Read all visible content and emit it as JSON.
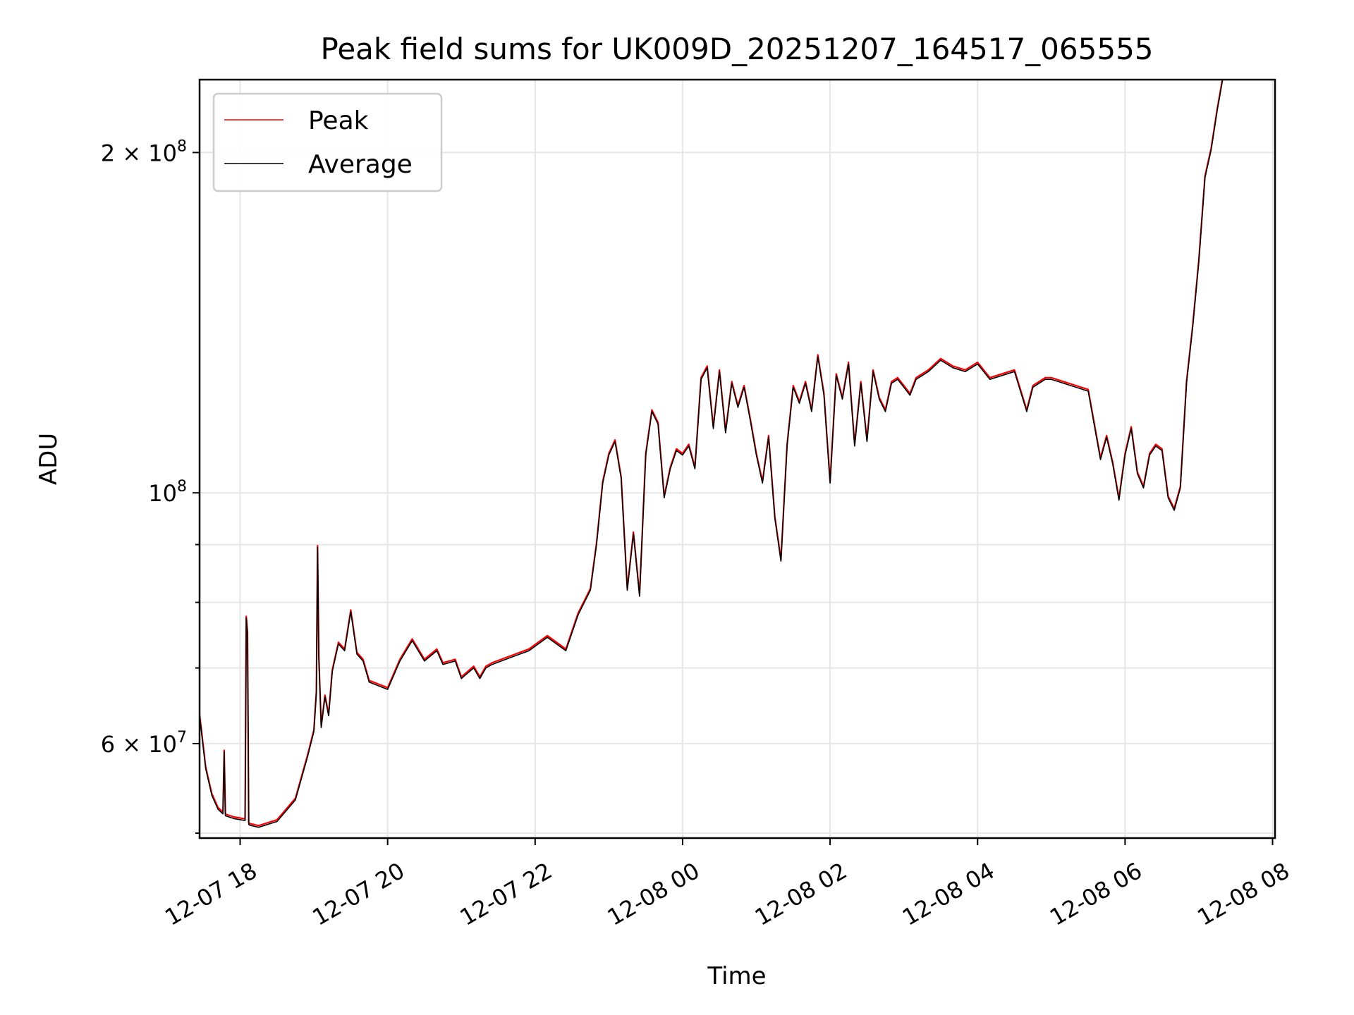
{
  "chart_data": {
    "type": "line",
    "title": "Peak field sums for UK009D_20251207_164517_065555",
    "xlabel": "Time",
    "ylabel": "ADU",
    "yscale": "log",
    "grid": true,
    "legend_position": "top-left",
    "xlim": [
      "2025-12-07 17:27",
      "2025-12-08 08:02"
    ],
    "ylim": [
      49500000,
      232000000
    ],
    "x_ticks": [
      {
        "value": "2025-12-07 18:00",
        "label": "12-07 18"
      },
      {
        "value": "2025-12-07 20:00",
        "label": "12-07 20"
      },
      {
        "value": "2025-12-07 22:00",
        "label": "12-07 22"
      },
      {
        "value": "2025-12-08 00:00",
        "label": "12-08 00"
      },
      {
        "value": "2025-12-08 02:00",
        "label": "12-08 02"
      },
      {
        "value": "2025-12-08 04:00",
        "label": "12-08 04"
      },
      {
        "value": "2025-12-08 06:00",
        "label": "12-08 06"
      },
      {
        "value": "2025-12-08 08:00",
        "label": "12-08 08"
      }
    ],
    "y_major_ticks": [
      {
        "value": 60000000,
        "mantissa": "6",
        "exponent": "7"
      },
      {
        "value": 100000000,
        "mantissa": "",
        "exponent": "8"
      },
      {
        "value": 200000000,
        "mantissa": "2",
        "exponent": "8"
      }
    ],
    "y_minor_ticks": [
      50000000,
      70000000,
      80000000,
      90000000
    ],
    "series": [
      {
        "name": "Peak",
        "color": "#ff0000",
        "offset": 0.6
      },
      {
        "name": "Average",
        "color": "#000000",
        "offset": 0.0
      }
    ],
    "x": [
      "2025-12-07 17:27",
      "2025-12-07 17:32",
      "2025-12-07 17:37",
      "2025-12-07 17:42",
      "2025-12-07 17:46",
      "2025-12-07 17:47",
      "2025-12-07 17:48",
      "2025-12-07 17:55",
      "2025-12-07 18:04",
      "2025-12-07 18:05",
      "2025-12-07 18:06",
      "2025-12-07 18:07",
      "2025-12-07 18:08",
      "2025-12-07 18:15",
      "2025-12-07 18:30",
      "2025-12-07 18:45",
      "2025-12-07 18:55",
      "2025-12-07 19:00",
      "2025-12-07 19:02",
      "2025-12-07 19:03",
      "2025-12-07 19:04",
      "2025-12-07 19:06",
      "2025-12-07 19:09",
      "2025-12-07 19:12",
      "2025-12-07 19:15",
      "2025-12-07 19:20",
      "2025-12-07 19:25",
      "2025-12-07 19:30",
      "2025-12-07 19:35",
      "2025-12-07 19:40",
      "2025-12-07 19:45",
      "2025-12-07 20:00",
      "2025-12-07 20:10",
      "2025-12-07 20:20",
      "2025-12-07 20:30",
      "2025-12-07 20:40",
      "2025-12-07 20:45",
      "2025-12-07 20:55",
      "2025-12-07 21:00",
      "2025-12-07 21:10",
      "2025-12-07 21:15",
      "2025-12-07 21:20",
      "2025-12-07 21:25",
      "2025-12-07 21:40",
      "2025-12-07 21:55",
      "2025-12-07 22:10",
      "2025-12-07 22:25",
      "2025-12-07 22:35",
      "2025-12-07 22:45",
      "2025-12-07 22:50",
      "2025-12-07 22:55",
      "2025-12-07 23:00",
      "2025-12-07 23:05",
      "2025-12-07 23:10",
      "2025-12-07 23:15",
      "2025-12-07 23:20",
      "2025-12-07 23:25",
      "2025-12-07 23:30",
      "2025-12-07 23:35",
      "2025-12-07 23:40",
      "2025-12-07 23:45",
      "2025-12-07 23:50",
      "2025-12-07 23:55",
      "2025-12-08 00:00",
      "2025-12-08 00:05",
      "2025-12-08 00:10",
      "2025-12-08 00:15",
      "2025-12-08 00:20",
      "2025-12-08 00:25",
      "2025-12-08 00:30",
      "2025-12-08 00:35",
      "2025-12-08 00:40",
      "2025-12-08 00:45",
      "2025-12-08 00:50",
      "2025-12-08 00:55",
      "2025-12-08 01:00",
      "2025-12-08 01:05",
      "2025-12-08 01:10",
      "2025-12-08 01:15",
      "2025-12-08 01:20",
      "2025-12-08 01:25",
      "2025-12-08 01:30",
      "2025-12-08 01:35",
      "2025-12-08 01:40",
      "2025-12-08 01:45",
      "2025-12-08 01:50",
      "2025-12-08 01:55",
      "2025-12-08 02:00",
      "2025-12-08 02:05",
      "2025-12-08 02:10",
      "2025-12-08 02:15",
      "2025-12-08 02:20",
      "2025-12-08 02:25",
      "2025-12-08 02:30",
      "2025-12-08 02:35",
      "2025-12-08 02:40",
      "2025-12-08 02:45",
      "2025-12-08 02:50",
      "2025-12-08 02:55",
      "2025-12-08 03:00",
      "2025-12-08 03:05",
      "2025-12-08 03:10",
      "2025-12-08 03:15",
      "2025-12-08 03:20",
      "2025-12-08 03:30",
      "2025-12-08 03:40",
      "2025-12-08 03:50",
      "2025-12-08 04:00",
      "2025-12-08 04:10",
      "2025-12-08 04:20",
      "2025-12-08 04:30",
      "2025-12-08 04:40",
      "2025-12-08 04:45",
      "2025-12-08 04:50",
      "2025-12-08 04:55",
      "2025-12-08 05:00",
      "2025-12-08 05:10",
      "2025-12-08 05:20",
      "2025-12-08 05:30",
      "2025-12-08 05:40",
      "2025-12-08 05:45",
      "2025-12-08 05:50",
      "2025-12-08 05:55",
      "2025-12-08 06:00",
      "2025-12-08 06:05",
      "2025-12-08 06:10",
      "2025-12-08 06:15",
      "2025-12-08 06:20",
      "2025-12-08 06:25",
      "2025-12-08 06:30",
      "2025-12-08 06:35",
      "2025-12-08 06:40",
      "2025-12-08 06:45",
      "2025-12-08 06:50",
      "2025-12-08 06:55",
      "2025-12-08 07:00",
      "2025-12-08 07:05",
      "2025-12-08 07:10",
      "2025-12-08 07:15",
      "2025-12-08 07:20"
    ],
    "values": [
      63500000,
      57000000,
      54000000,
      52500000,
      52000000,
      59000000,
      51800000,
      51500000,
      51300000,
      77500000,
      75000000,
      50900000,
      50800000,
      50600000,
      51200000,
      53500000,
      58500000,
      61500000,
      66500000,
      89500000,
      71500000,
      62000000,
      66000000,
      63500000,
      69500000,
      73500000,
      72500000,
      78500000,
      72000000,
      71000000,
      68000000,
      67000000,
      71000000,
      74000000,
      71000000,
      72500000,
      70500000,
      71000000,
      68500000,
      70000000,
      68500000,
      70000000,
      70500000,
      71500000,
      72500000,
      74500000,
      72500000,
      78000000,
      82000000,
      90000000,
      102000000,
      108000000,
      111000000,
      103000000,
      82000000,
      92000000,
      81000000,
      108000000,
      118000000,
      115000000,
      99000000,
      105000000,
      109000000,
      108000000,
      110000000,
      105000000,
      126000000,
      129000000,
      114000000,
      128000000,
      113000000,
      125000000,
      119000000,
      124000000,
      116000000,
      108000000,
      102000000,
      112000000,
      95000000,
      87000000,
      110000000,
      124000000,
      120000000,
      125000000,
      118000000,
      132000000,
      122000000,
      102000000,
      127000000,
      121000000,
      130000000,
      110000000,
      125000000,
      111000000,
      128000000,
      121000000,
      118000000,
      125000000,
      126000000,
      124000000,
      122000000,
      126000000,
      127000000,
      128000000,
      131000000,
      129000000,
      128000000,
      130000000,
      126000000,
      127000000,
      128000000,
      118000000,
      124000000,
      125000000,
      126000000,
      126000000,
      125000000,
      124000000,
      123000000,
      107000000,
      112000000,
      106000000,
      98500000,
      108000000,
      114000000,
      104000000,
      101000000,
      108000000,
      110000000,
      109000000,
      99000000,
      96500000,
      101000000,
      125000000,
      140000000,
      160000000,
      190000000,
      201000000,
      218000000,
      234000000
    ]
  }
}
